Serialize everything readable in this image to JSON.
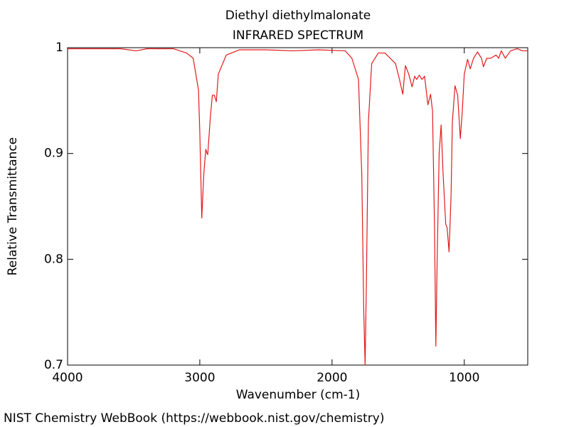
{
  "chart_data": {
    "type": "line",
    "title": "Diethyl diethylmalonate",
    "subtitle": "INFRARED SPECTRUM",
    "x_label": "Wavenumber (cm-1)",
    "y_label": "Relative Transmittance",
    "color": "#e31a1c",
    "xlim": [
      4000,
      520
    ],
    "xticks": [
      4000,
      3000,
      2000,
      1000
    ],
    "ylim": [
      0.7,
      1
    ],
    "yticks": [
      0.7,
      0.8,
      0.9,
      1
    ],
    "x": [
      4000,
      3600,
      3480,
      3400,
      3200,
      3100,
      3050,
      3010,
      3000,
      2985,
      2970,
      2955,
      2945,
      2940,
      2920,
      2905,
      2890,
      2875,
      2860,
      2800,
      2700,
      2500,
      2300,
      2100,
      1900,
      1850,
      1800,
      1775,
      1760,
      1750,
      1740,
      1725,
      1700,
      1650,
      1600,
      1560,
      1520,
      1490,
      1465,
      1445,
      1420,
      1395,
      1375,
      1360,
      1340,
      1320,
      1300,
      1275,
      1255,
      1240,
      1225,
      1215,
      1205,
      1190,
      1175,
      1160,
      1140,
      1130,
      1115,
      1100,
      1090,
      1070,
      1050,
      1030,
      1015,
      1000,
      975,
      955,
      930,
      900,
      870,
      855,
      830,
      800,
      760,
      740,
      720,
      690,
      650,
      600,
      560,
      520
    ],
    "values": [
      0.999,
      0.999,
      0.997,
      0.999,
      0.999,
      0.995,
      0.99,
      0.96,
      0.92,
      0.839,
      0.88,
      0.904,
      0.9,
      0.899,
      0.935,
      0.955,
      0.955,
      0.949,
      0.975,
      0.993,
      0.998,
      0.998,
      0.997,
      0.998,
      0.997,
      0.99,
      0.97,
      0.88,
      0.75,
      0.7,
      0.78,
      0.93,
      0.985,
      0.995,
      0.995,
      0.99,
      0.985,
      0.97,
      0.956,
      0.983,
      0.975,
      0.963,
      0.973,
      0.97,
      0.974,
      0.97,
      0.973,
      0.946,
      0.956,
      0.94,
      0.83,
      0.718,
      0.8,
      0.9,
      0.927,
      0.88,
      0.833,
      0.83,
      0.807,
      0.86,
      0.93,
      0.964,
      0.955,
      0.914,
      0.94,
      0.975,
      0.989,
      0.98,
      0.99,
      0.996,
      0.99,
      0.982,
      0.99,
      0.99,
      0.993,
      0.99,
      0.997,
      0.99,
      0.997,
      0.999,
      0.997,
      0.997
    ]
  },
  "footer": {
    "text": "NIST Chemistry WebBook (https://webbook.nist.gov/chemistry)"
  }
}
